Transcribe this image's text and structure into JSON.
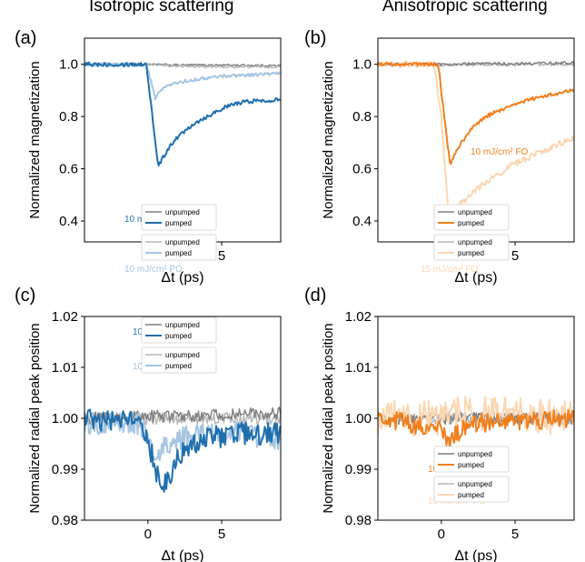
{
  "figure": {
    "left_title": "Isotropic scattering",
    "right_title": "Anisotropic scattering"
  },
  "colors": {
    "dark_blue": "#1f6fae",
    "light_blue": "#a6c5e2",
    "dark_gray": "#7f7f7f",
    "light_gray": "#b5b5b5",
    "orange": "#f07f1e",
    "light_orange": "#fbd7b2"
  },
  "chart_data": [
    {
      "panel": "(a)",
      "type": "line",
      "xlabel": "Δt (ps)",
      "ylabel": "Normalized  magnetization",
      "xlim": [
        -4.3,
        9
      ],
      "ylim": [
        0.32,
        1.1
      ],
      "xticks": [
        0,
        5
      ],
      "yticks": [
        0.4,
        0.6,
        0.8,
        1.0
      ],
      "ytick_labels": [
        "0.4",
        "0.6",
        "0.8",
        "1.0"
      ],
      "annotations": [
        {
          "text": "10 mJ/cm² FO",
          "color": "#1f6fae"
        },
        {
          "text": "10 mJ/cm² PO",
          "color": "#a6c5e2"
        }
      ],
      "legend": [
        {
          "label": "unpumped",
          "color": "#7f7f7f"
        },
        {
          "label": "pumped",
          "color": "#1f6fae"
        },
        {
          "label": "unpumped",
          "color": "#b5b5b5"
        },
        {
          "label": "pumped",
          "color": "#a6c5e2"
        }
      ],
      "series": [
        {
          "color": "#7f7f7f",
          "width": 1.4,
          "noise": 0.004,
          "x": [
            -4.3,
            0,
            2,
            5,
            9
          ],
          "y": [
            1.0,
            1.0,
            0.997,
            0.997,
            0.995
          ]
        },
        {
          "color": "#b5b5b5",
          "width": 1.4,
          "noise": 0.004,
          "x": [
            -4.3,
            0,
            2,
            5,
            9
          ],
          "y": [
            1.0,
            1.0,
            0.992,
            0.99,
            0.99
          ]
        },
        {
          "color": "#a6c5e2",
          "width": 2,
          "noise": 0.006,
          "x": [
            -4.3,
            -0.1,
            0.5,
            1.0,
            2.0,
            3.0,
            5.0,
            7.0,
            9.0
          ],
          "y": [
            1.0,
            1.0,
            0.87,
            0.91,
            0.93,
            0.94,
            0.955,
            0.96,
            0.965
          ]
        },
        {
          "color": "#1f6fae",
          "width": 2,
          "noise": 0.008,
          "x": [
            -4.3,
            -0.1,
            0.3,
            0.7,
            1.0,
            1.5,
            2.0,
            3.0,
            4.0,
            5.0,
            6.0,
            7.0,
            8.0,
            9.0
          ],
          "y": [
            1.0,
            1.0,
            0.8,
            0.61,
            0.64,
            0.69,
            0.72,
            0.77,
            0.8,
            0.83,
            0.85,
            0.86,
            0.86,
            0.87
          ]
        }
      ]
    },
    {
      "panel": "(b)",
      "type": "line",
      "xlabel": "Δt (ps)",
      "ylabel": "Normalized  magnetization",
      "xlim": [
        -4.3,
        9
      ],
      "ylim": [
        0.32,
        1.1
      ],
      "xticks": [
        0,
        5
      ],
      "yticks": [
        0.4,
        0.6,
        0.8,
        1.0
      ],
      "ytick_labels": [
        "0.4",
        "0.6",
        "0.8",
        "1.0"
      ],
      "annotations": [
        {
          "text": "10 mJ/cm² FO",
          "color": "#f07f1e"
        },
        {
          "text": "15 mJ/cm² FO",
          "color": "#fbd7b2"
        }
      ],
      "legend": [
        {
          "label": "unpumped",
          "color": "#7f7f7f"
        },
        {
          "label": "pumped",
          "color": "#f07f1e"
        },
        {
          "label": "unpumped",
          "color": "#b5b5b5"
        },
        {
          "label": "pumped",
          "color": "#fbd7b2"
        }
      ],
      "series": [
        {
          "color": "#b5b5b5",
          "width": 1.4,
          "noise": 0.006,
          "x": [
            -4.3,
            0,
            9
          ],
          "y": [
            1.0,
            0.998,
            1.0
          ]
        },
        {
          "color": "#7f7f7f",
          "width": 1.4,
          "noise": 0.006,
          "x": [
            -4.3,
            0,
            9
          ],
          "y": [
            1.0,
            1.0,
            1.005
          ]
        },
        {
          "color": "#fbd7b2",
          "width": 2,
          "noise": 0.012,
          "x": [
            -4.3,
            -0.5,
            0.0,
            0.5,
            1.0,
            2.0,
            3.0,
            5.0,
            7.0,
            9.0
          ],
          "y": [
            1.0,
            1.0,
            0.8,
            0.4,
            0.45,
            0.5,
            0.55,
            0.62,
            0.67,
            0.72
          ]
        },
        {
          "color": "#f07f1e",
          "width": 2,
          "noise": 0.007,
          "x": [
            -4.3,
            -0.2,
            0.3,
            0.6,
            1.0,
            2.0,
            3.0,
            5.0,
            7.0,
            9.0
          ],
          "y": [
            1.0,
            1.0,
            0.75,
            0.61,
            0.67,
            0.75,
            0.8,
            0.85,
            0.88,
            0.9
          ]
        }
      ]
    },
    {
      "panel": "(c)",
      "type": "line",
      "xlabel": "Δt (ps)",
      "ylabel": "Normalized  radial peak position",
      "xlim": [
        -4.3,
        9
      ],
      "ylim": [
        0.98,
        1.02
      ],
      "xticks": [
        0,
        5
      ],
      "yticks": [
        0.98,
        0.99,
        1.0,
        1.01,
        1.02
      ],
      "ytick_labels": [
        "0.98",
        "0.99",
        "1.00",
        "1.01",
        "1.02"
      ],
      "annotations": [
        {
          "text": "10 mJ/cm² FO",
          "color": "#1f6fae"
        },
        {
          "text": "10 mJ/cm² PO",
          "color": "#a6c5e2"
        }
      ],
      "legend": [
        {
          "label": "unpumped",
          "color": "#7f7f7f"
        },
        {
          "label": "pumped",
          "color": "#1f6fae"
        },
        {
          "label": "unpumped",
          "color": "#b5b5b5"
        },
        {
          "label": "pumped",
          "color": "#a6c5e2"
        }
      ],
      "series": [
        {
          "color": "#b5b5b5",
          "width": 1.4,
          "noise": 0.0012,
          "x": [
            -4.3,
            9
          ],
          "y": [
            1.0,
            1.0
          ]
        },
        {
          "color": "#7f7f7f",
          "width": 1.4,
          "noise": 0.0012,
          "x": [
            -4.3,
            9
          ],
          "y": [
            1.0,
            1.001
          ]
        },
        {
          "color": "#a6c5e2",
          "width": 2,
          "noise": 0.0022,
          "x": [
            -4.3,
            -0.5,
            0.5,
            1.0,
            2.0,
            4.0,
            6.0,
            9.0
          ],
          "y": [
            0.999,
            0.999,
            0.992,
            0.994,
            0.996,
            0.997,
            0.997,
            0.996
          ]
        },
        {
          "color": "#1f6fae",
          "width": 2,
          "noise": 0.0022,
          "x": [
            -4.3,
            -0.5,
            0.0,
            0.5,
            1.0,
            1.5,
            2.0,
            3.0,
            4.0,
            6.0,
            9.0
          ],
          "y": [
            1.0,
            0.999,
            0.996,
            0.99,
            0.987,
            0.989,
            0.992,
            0.995,
            0.996,
            0.997,
            0.997
          ]
        }
      ]
    },
    {
      "panel": "(d)",
      "type": "line",
      "xlabel": "Δt (ps)",
      "ylabel": "Normalized  radial peak position",
      "xlim": [
        -4.3,
        9
      ],
      "ylim": [
        0.98,
        1.02
      ],
      "xticks": [
        0,
        5
      ],
      "yticks": [
        0.98,
        0.99,
        1.0,
        1.01,
        1.02
      ],
      "ytick_labels": [
        "0.98",
        "0.99",
        "1.00",
        "1.01",
        "1.02"
      ],
      "annotations": [
        {
          "text": "10 mJ/cm² FO",
          "color": "#f07f1e"
        },
        {
          "text": "15 mJ/cm² FO",
          "color": "#fbd7b2"
        }
      ],
      "legend": [
        {
          "label": "unpumped",
          "color": "#7f7f7f"
        },
        {
          "label": "pumped",
          "color": "#f07f1e"
        },
        {
          "label": "unpumped",
          "color": "#b5b5b5"
        },
        {
          "label": "pumped",
          "color": "#fbd7b2"
        }
      ],
      "series": [
        {
          "color": "#b5b5b5",
          "width": 1.4,
          "noise": 0.0012,
          "x": [
            -4.3,
            9
          ],
          "y": [
            1.0,
            1.0
          ]
        },
        {
          "color": "#7f7f7f",
          "width": 1.4,
          "noise": 0.0012,
          "x": [
            -4.3,
            9
          ],
          "y": [
            1.0,
            1.0
          ]
        },
        {
          "color": "#fbd7b2",
          "width": 2,
          "noise": 0.0035,
          "x": [
            -4.3,
            0,
            1,
            3,
            9
          ],
          "y": [
            1.0,
            1.0,
            1.001,
            1.001,
            1.0
          ]
        },
        {
          "color": "#f07f1e",
          "width": 2,
          "noise": 0.0018,
          "x": [
            -4.3,
            0,
            0.5,
            1.0,
            2.0,
            9.0
          ],
          "y": [
            1.0,
            0.998,
            0.995,
            0.997,
            0.999,
            1.0
          ]
        }
      ]
    }
  ]
}
